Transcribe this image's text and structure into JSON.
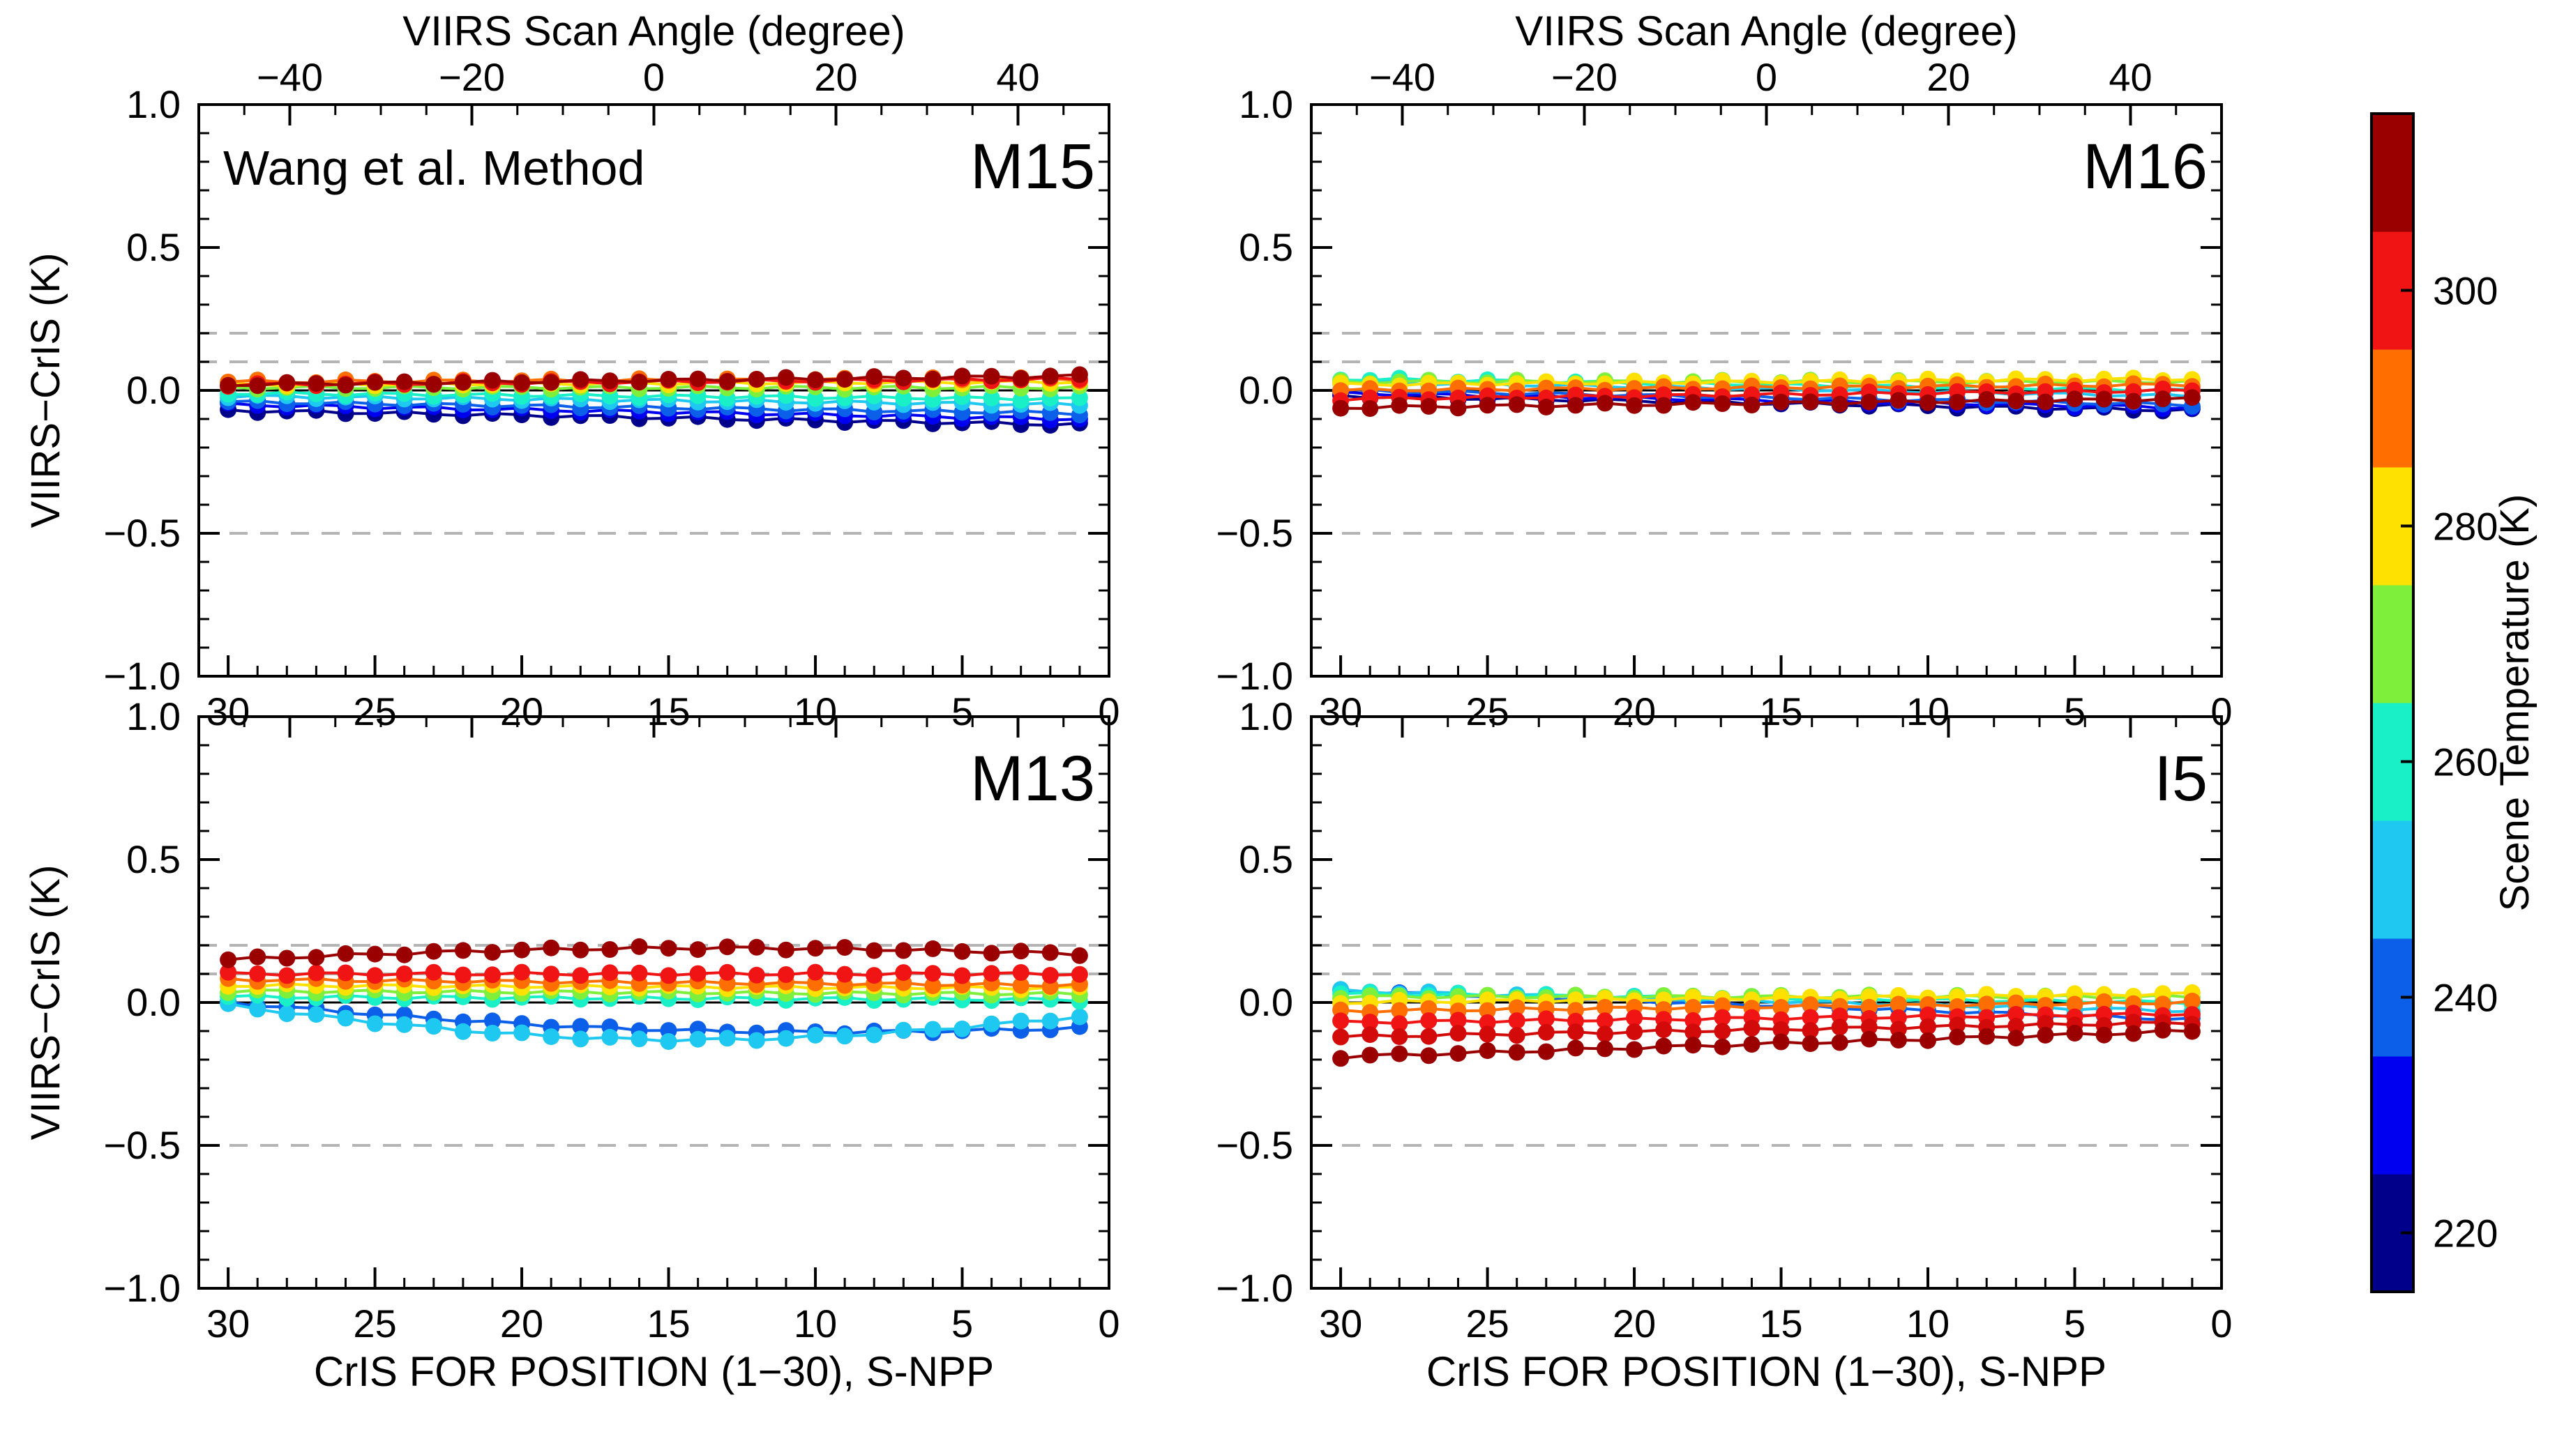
{
  "figure": {
    "top_axis_label": "VIIRS Scan Angle (degree)",
    "bottom_axis_label": "CrIS FOR POSITION (1−30), S-NPP",
    "y_axis_label": "VIIRS−CrIS (K)",
    "method_note": "Wang et al. Method"
  },
  "chart_data": [
    {
      "type": "line",
      "band": "M15",
      "title": "M15",
      "note": "Wang et al. Method",
      "xlabel": "CrIS FOR POSITION (1−30), S-NPP",
      "ylabel": "VIIRS−CrIS (K)",
      "top_xlabel": "VIIRS Scan Angle (degree)",
      "xlim": [
        31,
        0
      ],
      "ylim": [
        -1.0,
        1.0
      ],
      "top_xlim": [
        -50,
        50
      ],
      "x_ticks": [
        30,
        25,
        20,
        15,
        10,
        5,
        0
      ],
      "y_ticks": [
        1.0,
        0.5,
        0.0,
        -0.5,
        -1.0
      ],
      "top_ticks": [
        -40,
        -20,
        0,
        20,
        40
      ],
      "ref_lines": [
        0.2,
        0.1,
        -0.5
      ],
      "zero_line": 0.0,
      "x": [
        30,
        29,
        28,
        27,
        26,
        25,
        24,
        23,
        22,
        21,
        20,
        19,
        18,
        17,
        16,
        15,
        14,
        13,
        12,
        11,
        10,
        9,
        8,
        7,
        6,
        5,
        4,
        3,
        2,
        1
      ],
      "series": [
        {
          "name": "220",
          "color": "#00008b",
          "start": -0.07,
          "end": -0.12,
          "dip": 0
        },
        {
          "name": "230",
          "color": "#0000f0",
          "start": -0.05,
          "end": -0.1,
          "dip": 0
        },
        {
          "name": "240",
          "color": "#0b5fe8",
          "start": -0.04,
          "end": -0.08,
          "dip": 0
        },
        {
          "name": "250",
          "color": "#1ec8f0",
          "start": -0.02,
          "end": -0.05,
          "dip": 0
        },
        {
          "name": "260",
          "color": "#19f0c8",
          "start": -0.01,
          "end": -0.03,
          "dip": 0
        },
        {
          "name": "270",
          "color": "#7ef03c",
          "start": 0.01,
          "end": 0.01,
          "dip": 0
        },
        {
          "name": "280",
          "color": "#ffe100",
          "start": 0.02,
          "end": 0.03,
          "dip": 0
        },
        {
          "name": "290",
          "color": "#ff6e00",
          "start": 0.03,
          "end": 0.04,
          "dip": 0
        },
        {
          "name": "300",
          "color": "#f01414",
          "start": 0.02,
          "end": 0.04,
          "dip": 0
        },
        {
          "name": "310",
          "color": "#9b0000",
          "start": 0.02,
          "end": 0.05,
          "dip": 0
        }
      ]
    },
    {
      "type": "line",
      "band": "M16",
      "title": "M16",
      "xlabel": "CrIS FOR POSITION (1−30), S-NPP",
      "ylabel": "",
      "top_xlabel": "VIIRS Scan Angle (degree)",
      "xlim": [
        31,
        0
      ],
      "ylim": [
        -1.0,
        1.0
      ],
      "top_xlim": [
        -50,
        50
      ],
      "x_ticks": [
        30,
        25,
        20,
        15,
        10,
        5,
        0
      ],
      "y_ticks": [
        1.0,
        0.5,
        0.0,
        -0.5,
        -1.0
      ],
      "top_ticks": [
        -40,
        -20,
        0,
        20,
        40
      ],
      "ref_lines": [
        0.2,
        0.1,
        -0.5
      ],
      "zero_line": 0.0,
      "x": [
        30,
        29,
        28,
        27,
        26,
        25,
        24,
        23,
        22,
        21,
        20,
        19,
        18,
        17,
        16,
        15,
        14,
        13,
        12,
        11,
        10,
        9,
        8,
        7,
        6,
        5,
        4,
        3,
        2,
        1
      ],
      "series": [
        {
          "name": "220",
          "color": "#00008b",
          "start": -0.02,
          "end": -0.07,
          "dip": 0
        },
        {
          "name": "230",
          "color": "#0000f0",
          "start": -0.01,
          "end": -0.06,
          "dip": 0
        },
        {
          "name": "240",
          "color": "#0b5fe8",
          "start": 0.0,
          "end": -0.05,
          "dip": 0
        },
        {
          "name": "250",
          "color": "#1ec8f0",
          "start": 0.03,
          "end": -0.02,
          "dip": 0
        },
        {
          "name": "260",
          "color": "#19f0c8",
          "start": 0.04,
          "end": 0.0,
          "dip": 0
        },
        {
          "name": "270",
          "color": "#7ef03c",
          "start": 0.03,
          "end": 0.03,
          "dip": 0
        },
        {
          "name": "280",
          "color": "#ffe100",
          "start": 0.02,
          "end": 0.04,
          "dip": 0
        },
        {
          "name": "290",
          "color": "#ff6e00",
          "start": 0.0,
          "end": 0.02,
          "dip": 0
        },
        {
          "name": "300",
          "color": "#f01414",
          "start": -0.03,
          "end": 0.0,
          "dip": 0
        },
        {
          "name": "310",
          "color": "#9b0000",
          "start": -0.06,
          "end": -0.03,
          "dip": 0
        }
      ]
    },
    {
      "type": "line",
      "band": "M13",
      "title": "M13",
      "xlabel": "CrIS FOR POSITION (1−30), S-NPP",
      "ylabel": "VIIRS−CrIS (K)",
      "top_xlabel": "",
      "xlim": [
        31,
        0
      ],
      "ylim": [
        -1.0,
        1.0
      ],
      "top_xlim": [
        -50,
        50
      ],
      "x_ticks": [
        30,
        25,
        20,
        15,
        10,
        5,
        0
      ],
      "y_ticks": [
        1.0,
        0.5,
        0.0,
        -0.5,
        -1.0
      ],
      "top_ticks": [
        -40,
        -20,
        0,
        20,
        40
      ],
      "ref_lines": [
        0.2,
        0.1,
        -0.5
      ],
      "zero_line": 0.0,
      "x": [
        30,
        29,
        28,
        27,
        26,
        25,
        24,
        23,
        22,
        21,
        20,
        19,
        18,
        17,
        16,
        15,
        14,
        13,
        12,
        11,
        10,
        9,
        8,
        7,
        6,
        5,
        4,
        3,
        2,
        1
      ],
      "series": [
        {
          "name": "240",
          "color": "#0b5fe8",
          "start": 0.0,
          "end": -0.09,
          "dip": -0.05
        },
        {
          "name": "250",
          "color": "#1ec8f0",
          "start": -0.01,
          "end": -0.05,
          "dip": -0.1
        },
        {
          "name": "260",
          "color": "#19f0c8",
          "start": 0.02,
          "end": 0.01,
          "dip": 0
        },
        {
          "name": "270",
          "color": "#7ef03c",
          "start": 0.04,
          "end": 0.03,
          "dip": 0
        },
        {
          "name": "280",
          "color": "#ffe100",
          "start": 0.06,
          "end": 0.05,
          "dip": 0
        },
        {
          "name": "290",
          "color": "#ff6e00",
          "start": 0.08,
          "end": 0.06,
          "dip": 0
        },
        {
          "name": "300",
          "color": "#f01414",
          "start": 0.1,
          "end": 0.1,
          "dip": 0
        },
        {
          "name": "310",
          "color": "#9b0000",
          "start": 0.15,
          "end": 0.17,
          "dip": 0.03
        }
      ]
    },
    {
      "type": "line",
      "band": "I5",
      "title": "I5",
      "xlabel": "CrIS FOR POSITION (1−30), S-NPP",
      "ylabel": "",
      "top_xlabel": "",
      "xlim": [
        31,
        0
      ],
      "ylim": [
        -1.0,
        1.0
      ],
      "top_xlim": [
        -50,
        50
      ],
      "x_ticks": [
        30,
        25,
        20,
        15,
        10,
        5,
        0
      ],
      "y_ticks": [
        1.0,
        0.5,
        0.0,
        -0.5,
        -1.0
      ],
      "top_ticks": [
        -40,
        -20,
        0,
        20,
        40
      ],
      "ref_lines": [
        0.2,
        0.1,
        -0.5
      ],
      "zero_line": 0.0,
      "x": [
        30,
        29,
        28,
        27,
        26,
        25,
        24,
        23,
        22,
        21,
        20,
        19,
        18,
        17,
        16,
        15,
        14,
        13,
        12,
        11,
        10,
        9,
        8,
        7,
        6,
        5,
        4,
        3,
        2,
        1
      ],
      "series": [
        {
          "name": "240",
          "color": "#0b5fe8",
          "start": 0.04,
          "end": -0.06,
          "dip": 0
        },
        {
          "name": "250",
          "color": "#1ec8f0",
          "start": 0.04,
          "end": -0.03,
          "dip": 0
        },
        {
          "name": "260",
          "color": "#19f0c8",
          "start": 0.03,
          "end": 0.0,
          "dip": 0
        },
        {
          "name": "270",
          "color": "#7ef03c",
          "start": 0.02,
          "end": 0.02,
          "dip": 0
        },
        {
          "name": "280",
          "color": "#ffe100",
          "start": 0.0,
          "end": 0.03,
          "dip": 0
        },
        {
          "name": "290",
          "color": "#ff6e00",
          "start": -0.03,
          "end": 0.0,
          "dip": 0
        },
        {
          "name": "300",
          "color": "#f01414",
          "start": -0.07,
          "end": -0.04,
          "dip": 0
        },
        {
          "name": "305",
          "color": "#d20a0a",
          "start": -0.12,
          "end": -0.07,
          "dip": 0
        },
        {
          "name": "310",
          "color": "#9b0000",
          "start": -0.19,
          "end": -0.1,
          "dip": 0
        }
      ]
    }
  ],
  "colorbar": {
    "label": "Scene Temperature (K)",
    "range": [
      215,
      315
    ],
    "ticks": [
      220,
      240,
      260,
      280,
      300
    ],
    "colors": [
      "#00008b",
      "#0000f0",
      "#0b5fe8",
      "#1ec8f0",
      "#19f0c8",
      "#7ef03c",
      "#ffe100",
      "#ff6e00",
      "#f01414",
      "#9b0000"
    ]
  }
}
